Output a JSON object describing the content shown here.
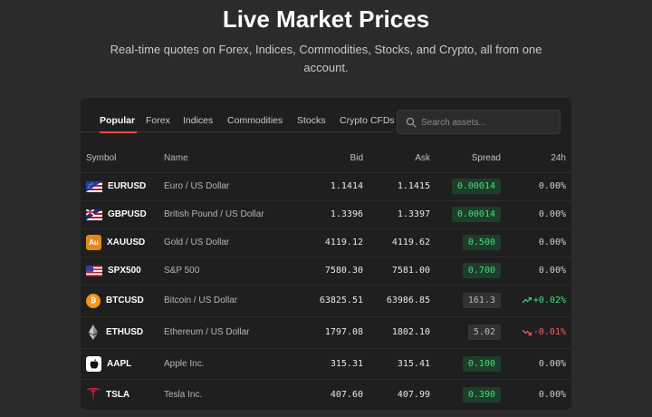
{
  "header": {
    "title": "Live Market Prices",
    "subtitle": "Real-time quotes on Forex, Indices, Commodities, Stocks, and Crypto, all from one account."
  },
  "tabs": [
    {
      "label": "Popular",
      "active": true
    },
    {
      "label": "Forex",
      "active": false
    },
    {
      "label": "Indices",
      "active": false
    },
    {
      "label": "Commodities",
      "active": false
    },
    {
      "label": "Stocks",
      "active": false
    },
    {
      "label": "Crypto CFDs",
      "active": false
    }
  ],
  "search": {
    "placeholder": "Search assets...",
    "value": ""
  },
  "table": {
    "headers": {
      "symbol": "Symbol",
      "name": "Name",
      "bid": "Bid",
      "ask": "Ask",
      "spread": "Spread",
      "change": "24h"
    },
    "rows": [
      {
        "symbol": "EURUSD",
        "name": "Euro / US Dollar",
        "bid": "1.1414",
        "ask": "1.1415",
        "spread": "0.00014",
        "spread_style": "green",
        "change": "0.00%",
        "trend": "neutral",
        "icon": "eu-us-flag-icon"
      },
      {
        "symbol": "GBPUSD",
        "name": "British Pound / US Dollar",
        "bid": "1.3396",
        "ask": "1.3397",
        "spread": "0.00014",
        "spread_style": "green",
        "change": "0.00%",
        "trend": "neutral",
        "icon": "uk-us-flag-icon"
      },
      {
        "symbol": "XAUUSD",
        "name": "Gold / US Dollar",
        "bid": "4119.12",
        "ask": "4119.62",
        "spread": "0.500",
        "spread_style": "green",
        "change": "0.00%",
        "trend": "neutral",
        "icon": "gold-icon",
        "icon_text": "Au"
      },
      {
        "symbol": "SPX500",
        "name": "S&P 500",
        "bid": "7580.30",
        "ask": "7581.00",
        "spread": "0.700",
        "spread_style": "green",
        "change": "0.00%",
        "trend": "neutral",
        "icon": "us-flag-icon"
      },
      {
        "symbol": "BTCUSD",
        "name": "Bitcoin / US Dollar",
        "bid": "63825.51",
        "ask": "63986.85",
        "spread": "161.3",
        "spread_style": "grey",
        "change": "+0.02%",
        "trend": "up",
        "icon": "bitcoin-icon",
        "icon_text": "₿"
      },
      {
        "symbol": "ETHUSD",
        "name": "Ethereum / US Dollar",
        "bid": "1797.08",
        "ask": "1802.10",
        "spread": "5.02",
        "spread_style": "grey",
        "change": "-0.01%",
        "trend": "down",
        "icon": "ethereum-icon"
      },
      {
        "symbol": "AAPL",
        "name": "Apple Inc.",
        "bid": "315.31",
        "ask": "315.41",
        "spread": "0.100",
        "spread_style": "green",
        "change": "0.00%",
        "trend": "neutral",
        "icon": "apple-icon"
      },
      {
        "symbol": "TSLA",
        "name": "Tesla Inc.",
        "bid": "407.60",
        "ask": "407.99",
        "spread": "0.390",
        "spread_style": "green",
        "change": "0.00%",
        "trend": "neutral",
        "icon": "tesla-icon"
      }
    ]
  },
  "colors": {
    "background": "#2b2b2b",
    "panel": "#1f1f1f",
    "accent": "#e74c4c",
    "positive": "#3ee07a",
    "negative": "#ff5d5d"
  }
}
